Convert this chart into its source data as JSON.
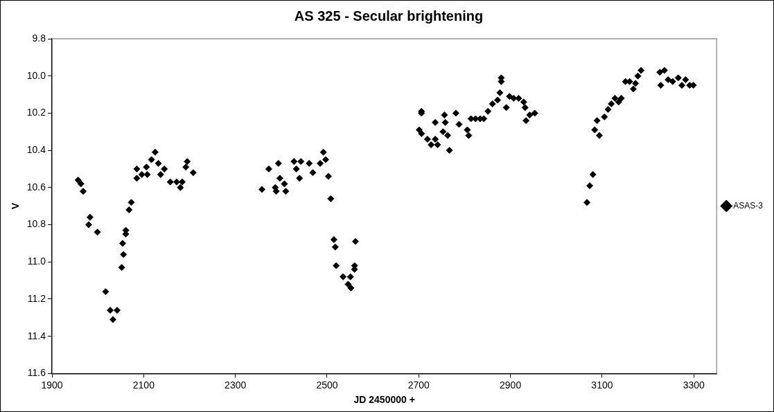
{
  "chart_data": {
    "type": "scatter",
    "title": "AS 325 - Secular brightening",
    "xlabel": "JD 2450000 +",
    "ylabel": "V",
    "xlim": [
      1900,
      3350
    ],
    "xticks": [
      1900,
      2100,
      2300,
      2500,
      2700,
      2900,
      3100,
      3300
    ],
    "ylim": [
      11.6,
      9.8
    ],
    "yticks": [
      {
        "value": 9.8,
        "label": "9.8"
      },
      {
        "value": 10,
        "label": "10.0"
      },
      {
        "value": 10.2,
        "label": "10.2"
      },
      {
        "value": 10.4,
        "label": "10.4"
      },
      {
        "value": 10.6,
        "label": "10.6"
      },
      {
        "value": 10.8,
        "label": "10.8"
      },
      {
        "value": 11,
        "label": "11.0"
      },
      {
        "value": 11.2,
        "label": "11.2"
      },
      {
        "value": 11.4,
        "label": "11.4"
      },
      {
        "value": 11.6,
        "label": "11.6"
      }
    ],
    "grid": false,
    "legend": "right",
    "marker": "diamond",
    "series": [
      {
        "name": "ASAS-3",
        "color": "#000000",
        "x": [
          1957,
          1963,
          1968,
          1983,
          1980,
          1999,
          2017,
          2027,
          2033,
          2042,
          2052,
          2056,
          2054,
          2061,
          2061,
          2068,
          2073,
          2085,
          2085,
          2096,
          2106,
          2108,
          2117,
          2125,
          2132,
          2137,
          2145,
          2158,
          2172,
          2180,
          2184,
          2195,
          2192,
          2208,
          2358,
          2373,
          2387,
          2394,
          2397,
          2389,
          2410,
          2407,
          2428,
          2433,
          2440,
          2443,
          2461,
          2469,
          2485,
          2492,
          2497,
          2503,
          2508,
          2515,
          2518,
          2562,
          2520,
          2560,
          2560,
          2535,
          2551,
          2546,
          2552,
          2706,
          2706,
          2701,
          2706,
          2719,
          2727,
          2741,
          2736,
          2736,
          2756,
          2758,
          2753,
          2763,
          2767,
          2781,
          2788,
          2806,
          2809,
          2814,
          2824,
          2834,
          2842,
          2851,
          2861,
          2872,
          2877,
          2880,
          2880,
          2891,
          2898,
          2907,
          2918,
          2929,
          2932,
          2934,
          2942,
          2953,
          3067,
          3073,
          3080,
          3084,
          3094,
          3089,
          3105,
          3113,
          3120,
          3128,
          3136,
          3142,
          3151,
          3160,
          3168,
          3173,
          3178,
          3185,
          3226,
          3228,
          3236,
          3244,
          3254,
          3266,
          3274,
          3282,
          3291,
          3299
        ],
        "values": [
          10.56,
          10.58,
          10.62,
          10.76,
          10.8,
          10.84,
          11.16,
          11.26,
          11.31,
          11.26,
          11.03,
          10.96,
          10.9,
          10.85,
          10.83,
          10.72,
          10.68,
          10.5,
          10.55,
          10.53,
          10.49,
          10.53,
          10.45,
          10.41,
          10.47,
          10.53,
          10.5,
          10.57,
          10.57,
          10.6,
          10.57,
          10.46,
          10.49,
          10.52,
          10.61,
          10.5,
          10.6,
          10.47,
          10.55,
          10.62,
          10.62,
          10.58,
          10.46,
          10.5,
          10.55,
          10.46,
          10.47,
          10.52,
          10.47,
          10.41,
          10.45,
          10.54,
          10.66,
          10.88,
          10.92,
          10.89,
          11.02,
          11.02,
          11.04,
          11.08,
          11.08,
          11.12,
          11.14,
          10.19,
          10.2,
          10.29,
          10.31,
          10.34,
          10.37,
          10.37,
          10.25,
          10.34,
          10.21,
          10.25,
          10.3,
          10.32,
          10.4,
          10.2,
          10.26,
          10.29,
          10.32,
          10.23,
          10.23,
          10.23,
          10.23,
          10.19,
          10.15,
          10.13,
          10.09,
          10.03,
          10.01,
          10.17,
          10.11,
          10.12,
          10.12,
          10.14,
          10.17,
          10.24,
          10.21,
          10.2,
          10.68,
          10.59,
          10.53,
          10.29,
          10.32,
          10.24,
          10.22,
          10.18,
          10.15,
          10.12,
          10.14,
          10.12,
          10.03,
          10.03,
          10.07,
          10.04,
          10.0,
          9.97,
          9.98,
          10.05,
          9.97,
          10.02,
          10.03,
          10.01,
          10.05,
          10.02,
          10.05,
          10.05
        ]
      }
    ]
  }
}
